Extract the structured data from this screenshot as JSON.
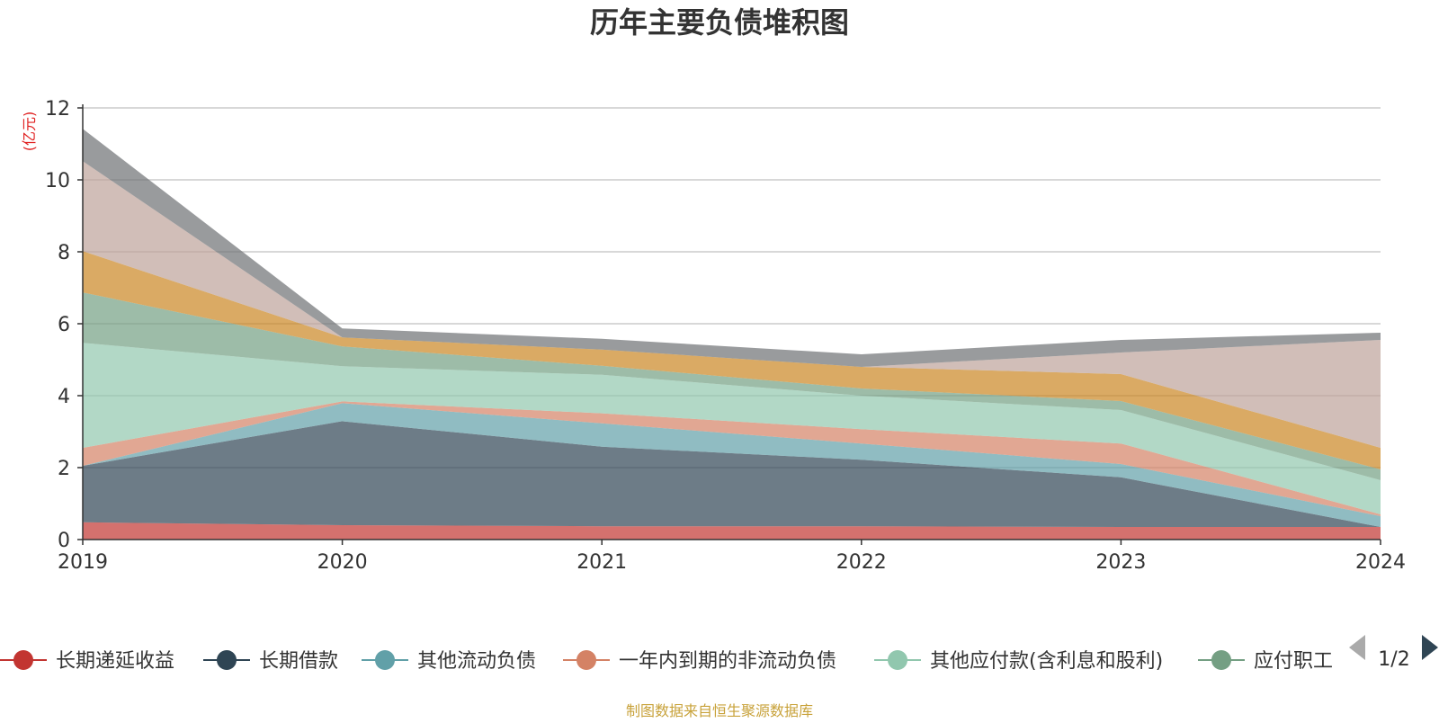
{
  "chart_data": {
    "type": "area",
    "stacked": true,
    "title": "历年主要负债堆积图",
    "unit_label": "(亿元)",
    "x": [
      "2019",
      "2020",
      "2021",
      "2022",
      "2023",
      "2024"
    ],
    "ylim": [
      0,
      12
    ],
    "yticks": [
      "0",
      "2",
      "4",
      "6",
      "8",
      "10",
      "12"
    ],
    "grid": true,
    "legend_position": "bottom",
    "legend_page": "1/2",
    "source_note": "制图数据来自恒生聚源数据库",
    "series": [
      {
        "name": "长期递延收益",
        "color": "#c23531",
        "values": [
          0.48,
          0.4,
          0.37,
          0.37,
          0.35,
          0.35
        ],
        "in_legend": true
      },
      {
        "name": "长期借款",
        "color": "#2f4554",
        "values": [
          1.57,
          2.89,
          2.21,
          1.85,
          1.38,
          0.0
        ],
        "in_legend": true
      },
      {
        "name": "其他流动负债",
        "color": "#61a0a8",
        "values": [
          0.0,
          0.5,
          0.65,
          0.45,
          0.37,
          0.3
        ],
        "in_legend": true
      },
      {
        "name": "一年内到期的非流动负债",
        "color": "#d48265",
        "values": [
          0.5,
          0.05,
          0.28,
          0.4,
          0.57,
          0.05
        ],
        "in_legend": true
      },
      {
        "name": "其他应付款(含利息和股利)",
        "color": "#91c7ae",
        "values": [
          2.92,
          0.98,
          1.07,
          0.93,
          0.93,
          0.95
        ],
        "in_legend": true
      },
      {
        "name": "应付职工",
        "color": "#749f83",
        "values": [
          1.4,
          0.55,
          0.25,
          0.2,
          0.25,
          0.3
        ],
        "in_legend": true
      },
      {
        "name": "",
        "color": "#ca8622",
        "values": [
          1.15,
          0.25,
          0.45,
          0.6,
          0.75,
          0.6
        ],
        "in_legend": false
      },
      {
        "name": "",
        "color": "#bda29a",
        "values": [
          2.5,
          0.0,
          0.0,
          0.0,
          0.6,
          3.0
        ],
        "in_legend": false
      },
      {
        "name": "",
        "color": "#6e7074",
        "values": [
          0.9,
          0.25,
          0.3,
          0.35,
          0.35,
          0.2
        ],
        "in_legend": false
      }
    ]
  }
}
